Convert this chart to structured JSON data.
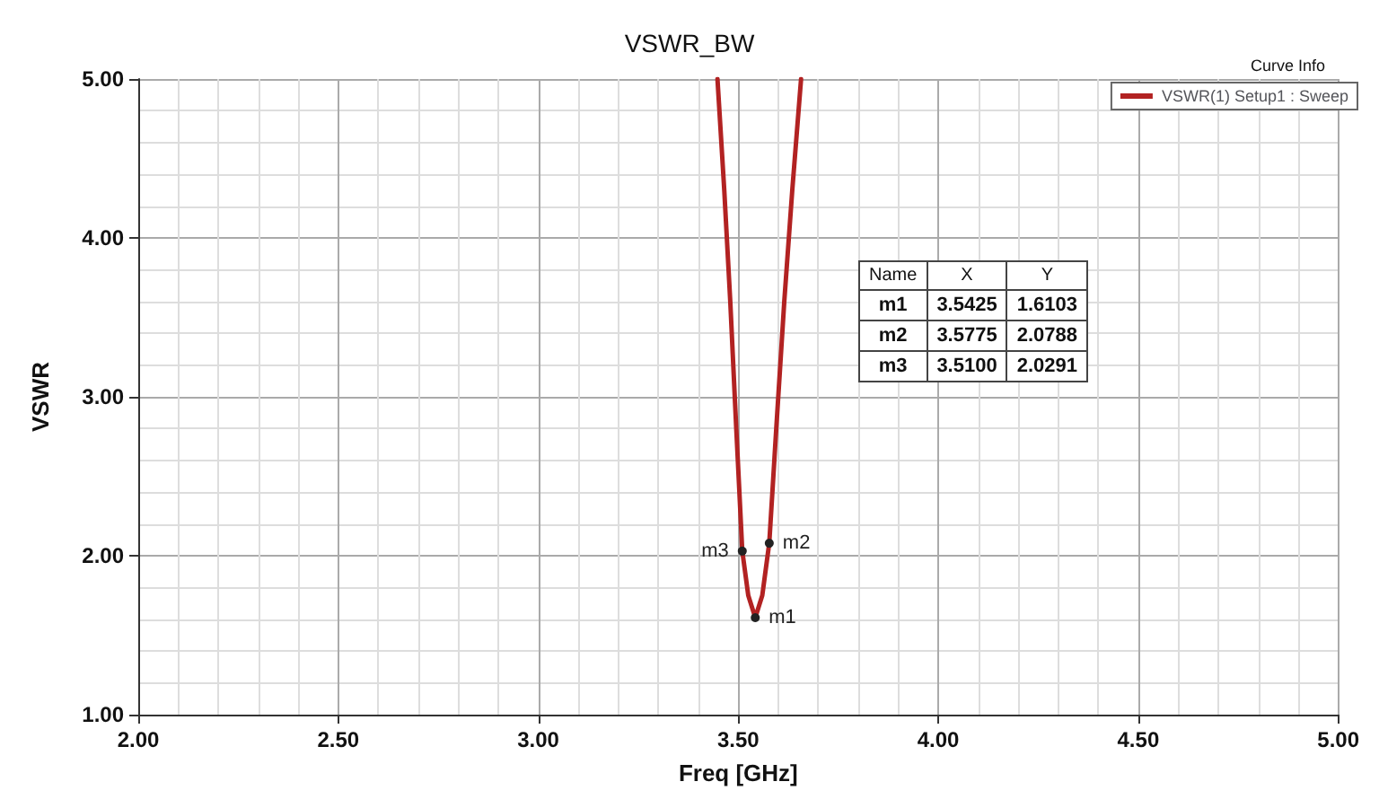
{
  "chart_data": {
    "type": "line",
    "title": "VSWR_BW",
    "xlabel": "Freq [GHz]",
    "ylabel": "VSWR",
    "x": [
      3.448,
      3.465,
      3.48,
      3.495,
      3.51,
      3.525,
      3.5425,
      3.56,
      3.5775,
      3.595,
      3.615,
      3.635,
      3.657
    ],
    "series": [
      {
        "name": "VSWR(1) Setup1 : Sweep",
        "color": "#b22222",
        "values": [
          5.0,
          4.3,
          3.6,
          2.8,
          2.03,
          1.75,
          1.61,
          1.75,
          2.08,
          2.8,
          3.6,
          4.3,
          5.0
        ]
      }
    ],
    "legend_title": "Curve Info",
    "legend": "top right",
    "xlim": [
      2,
      5
    ],
    "xticks": [
      {
        "value": 2,
        "label": "2.00"
      },
      {
        "value": 2.5,
        "label": "2.50"
      },
      {
        "value": 3,
        "label": "3.00"
      },
      {
        "value": 3.5,
        "label": "3.50"
      },
      {
        "value": 4,
        "label": "4.00"
      },
      {
        "value": 4.5,
        "label": "4.50"
      },
      {
        "value": 5,
        "label": "5.00"
      }
    ],
    "ylim": [
      1,
      5
    ],
    "yticks": [
      {
        "value": 1,
        "label": "1.00"
      },
      {
        "value": 2,
        "label": "2.00"
      },
      {
        "value": 3,
        "label": "3.00"
      },
      {
        "value": 4,
        "label": "4.00"
      },
      {
        "value": 5,
        "label": "5.00"
      }
    ],
    "grid": true,
    "marker": "none",
    "line_style": "solid",
    "annotations": [
      {
        "text": "m1",
        "x": 3.5425,
        "y": 1.6103
      },
      {
        "text": "m2",
        "x": 3.5775,
        "y": 2.0788
      },
      {
        "text": "m3",
        "x": 3.51,
        "y": 2.0291
      },
      "Name",
      "X",
      "Y",
      "m1",
      "3.5425",
      "1.6103",
      "m2",
      "3.5775",
      "2.0788",
      "m3",
      "3.5100",
      "2.0291"
    ]
  }
}
